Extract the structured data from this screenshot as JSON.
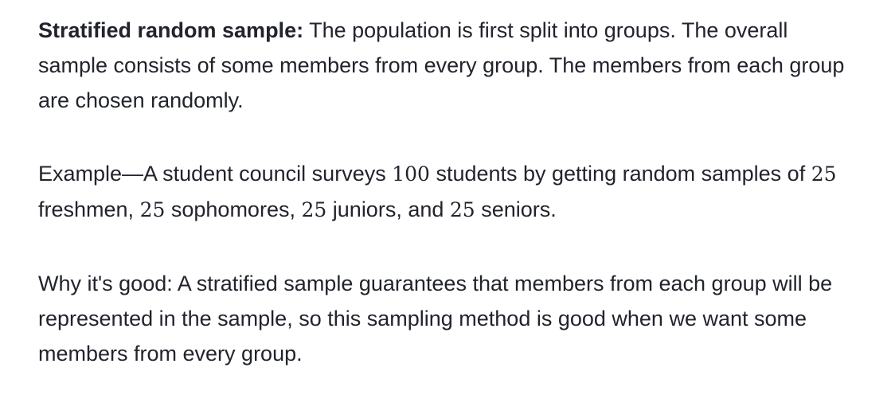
{
  "definition": {
    "term": "Stratified random sample:",
    "text": " The population is first split into groups. The overall sample consists of some members from every group. The members from each group are chosen randomly."
  },
  "example": {
    "intro": "Example—A student council surveys ",
    "n_total": "100",
    "part1": " students by getting random samples of ",
    "n_freshmen": "25",
    "part2": " freshmen, ",
    "n_sophomores": "25",
    "part3": " sophomores, ",
    "n_juniors": "25",
    "part4": " juniors, and ",
    "n_seniors": "25",
    "part5": " seniors."
  },
  "why": {
    "text": "Why it's good: A stratified sample guarantees that members from each group will be represented in the sample, so this sampling method is good when we want some members from every group."
  }
}
